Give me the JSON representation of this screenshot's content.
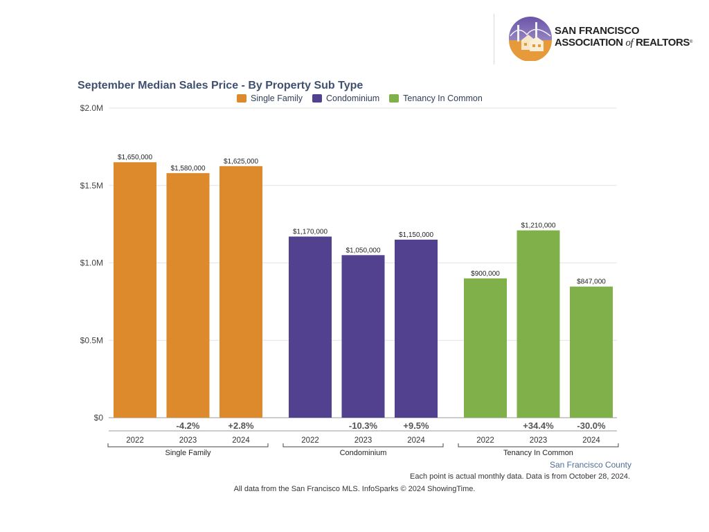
{
  "header": {
    "logo_line1": "San Francisco",
    "logo_line2_a": "Association ",
    "logo_line2_of": "of",
    "logo_line2_b": " Realtors",
    "logo_reg": "®"
  },
  "footer": {
    "county": "San Francisco County",
    "note": "Each point is actual monthly data. Data is from October 28, 2024.",
    "source": "All data from the San Francisco MLS. InfoSparks © 2024 ShowingTime."
  },
  "chart_data": {
    "type": "bar",
    "title": "September Median Sales Price - By Property Sub Type",
    "ylim": [
      0,
      2000000
    ],
    "y_ticks": [
      "$0",
      "$0.5M",
      "$1.0M",
      "$1.5M",
      "$2.0M"
    ],
    "y_tick_values": [
      0,
      500000,
      1000000,
      1500000,
      2000000
    ],
    "grid": true,
    "legend_position": "top-center",
    "groups": [
      {
        "name": "Single Family",
        "color": "#dd8a2c",
        "years": [
          "2022",
          "2023",
          "2024"
        ],
        "values": [
          1650000,
          1580000,
          1625000
        ],
        "labels": [
          "$1,650,000",
          "$1,580,000",
          "$1,625,000"
        ],
        "changes": [
          "",
          "-4.2%",
          "+2.8%"
        ]
      },
      {
        "name": "Condominium",
        "color": "#52418e",
        "years": [
          "2022",
          "2023",
          "2024"
        ],
        "values": [
          1170000,
          1050000,
          1150000
        ],
        "labels": [
          "$1,170,000",
          "$1,050,000",
          "$1,150,000"
        ],
        "changes": [
          "",
          "-10.3%",
          "+9.5%"
        ]
      },
      {
        "name": "Tenancy In Common",
        "color": "#80b04a",
        "years": [
          "2022",
          "2023",
          "2024"
        ],
        "values": [
          900000,
          1210000,
          847000
        ],
        "labels": [
          "$900,000",
          "$1,210,000",
          "$847,000"
        ],
        "changes": [
          "",
          "+34.4%",
          "-30.0%"
        ]
      }
    ]
  }
}
